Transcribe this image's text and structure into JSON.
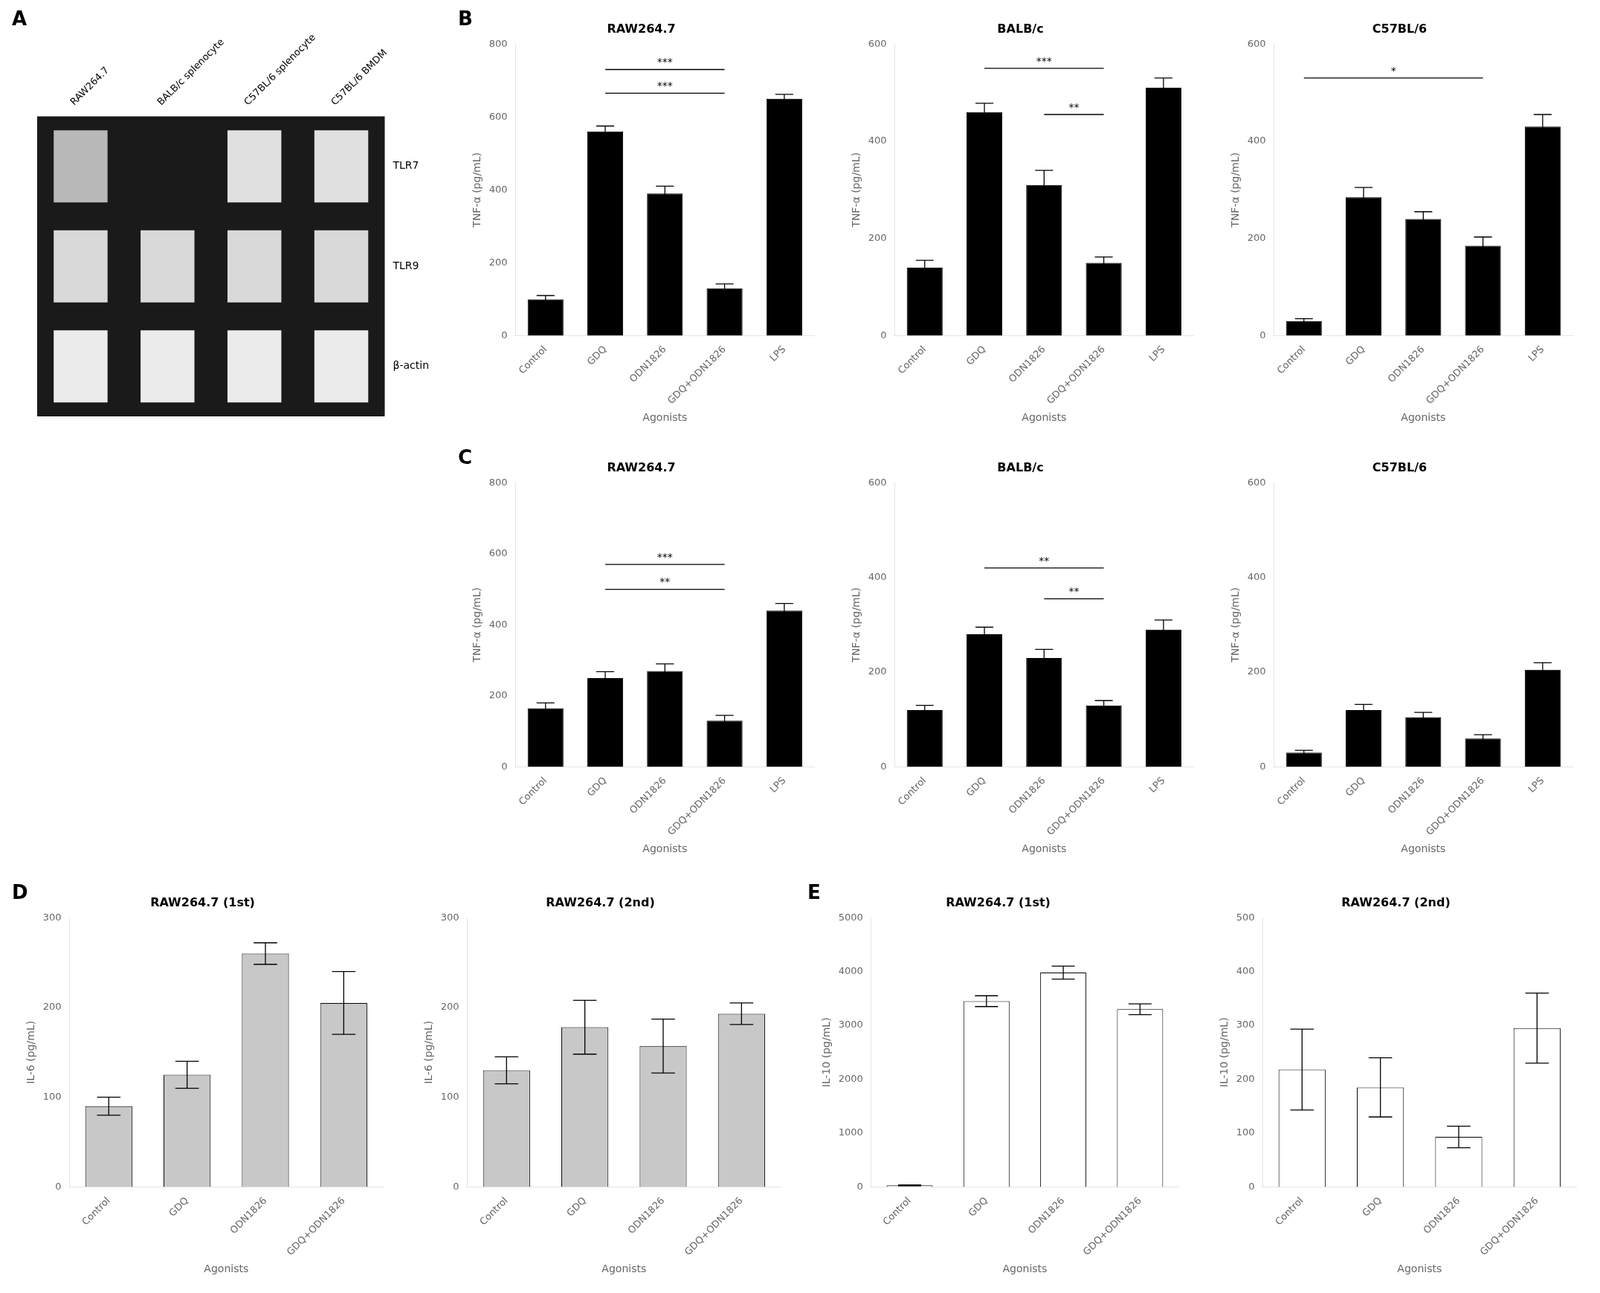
{
  "chart_data": [
    {
      "type": "gel",
      "annotations": [
        {
          "text": "A"
        }
      ],
      "categories": [
        "RAW264.7",
        "BALB/c splenocyte",
        "C57BL/6 splenocyte",
        "C57BL/6 BMDM"
      ],
      "series": [
        {
          "name": "TLR7",
          "values": [
            0.72,
            null,
            0.88,
            0.88
          ]
        },
        {
          "name": "TLR9",
          "values": [
            0.85,
            0.85,
            0.85,
            0.85
          ]
        },
        {
          "name": "β-actin",
          "values": [
            0.92,
            0.92,
            0.92,
            0.92
          ]
        }
      ]
    },
    {
      "type": "bar",
      "title": "RAW264.7",
      "x_label": "Agonists",
      "y_label": "TNF-α (pg/mL)",
      "categories": [
        "Control",
        "GDQ",
        "ODN1826",
        "GDQ+ODN1826",
        "LPS"
      ],
      "values": [
        100,
        560,
        390,
        130,
        650
      ],
      "errors": [
        10,
        15,
        20,
        12,
        12
      ],
      "color": "#000000",
      "ylim": [
        0,
        800
      ],
      "yticks": [
        0,
        200,
        400,
        600,
        800
      ],
      "grid": false,
      "annotations": [
        {
          "text": "B"
        },
        {
          "text": "***",
          "x": [
            "GDQ",
            "GDQ+ODN1826"
          ],
          "y": 730
        },
        {
          "text": "***",
          "x": [
            "GDQ",
            "GDQ+ODN1826"
          ],
          "y": 665
        }
      ]
    },
    {
      "type": "bar",
      "title": "BALB/c",
      "x_label": "Agonists",
      "y_label": "TNF-α (pg/mL)",
      "categories": [
        "Control",
        "GDQ",
        "ODN1826",
        "GDQ+ODN1826",
        "LPS"
      ],
      "values": [
        140,
        460,
        310,
        150,
        510
      ],
      "errors": [
        15,
        18,
        30,
        12,
        20
      ],
      "color": "#000000",
      "ylim": [
        0,
        600
      ],
      "yticks": [
        0,
        200,
        400,
        600
      ],
      "grid": false,
      "annotations": [
        {
          "text": "***",
          "x": [
            "GDQ",
            "GDQ+ODN1826"
          ],
          "y": 550
        },
        {
          "text": "**",
          "x": [
            "ODN1826",
            "GDQ+ODN1826"
          ],
          "y": 455
        }
      ]
    },
    {
      "type": "bar",
      "title": "C57BL/6",
      "x_label": "Agonists",
      "y_label": "TNF-α (pg/mL)",
      "categories": [
        "Control",
        "GDQ",
        "ODN1826",
        "GDQ+ODN1826",
        "LPS"
      ],
      "values": [
        30,
        285,
        240,
        185,
        430
      ],
      "errors": [
        5,
        20,
        15,
        18,
        25
      ],
      "color": "#000000",
      "ylim": [
        0,
        600
      ],
      "yticks": [
        0,
        200,
        400,
        600
      ],
      "grid": false,
      "annotations": [
        {
          "text": "*",
          "x": [
            "Control",
            "GDQ+ODN1826"
          ],
          "y": 530
        }
      ]
    },
    {
      "type": "bar",
      "title": "RAW264.7",
      "x_label": "Agonists",
      "y_label": "TNF-α (pg/mL)",
      "categories": [
        "Control",
        "GDQ",
        "ODN1826",
        "GDQ+ODN1826",
        "LPS"
      ],
      "values": [
        165,
        250,
        270,
        130,
        440
      ],
      "errors": [
        15,
        18,
        20,
        15,
        20
      ],
      "color": "#000000",
      "ylim": [
        0,
        800
      ],
      "yticks": [
        0,
        200,
        400,
        600,
        800
      ],
      "grid": false,
      "annotations": [
        {
          "text": "C"
        },
        {
          "text": "***",
          "x": [
            "GDQ",
            "GDQ+ODN1826"
          ],
          "y": 570
        },
        {
          "text": "**",
          "x": [
            "GDQ",
            "GDQ+ODN1826"
          ],
          "y": 500
        }
      ]
    },
    {
      "type": "bar",
      "title": "BALB/c",
      "x_label": "Agonists",
      "y_label": "TNF-α (pg/mL)",
      "categories": [
        "Control",
        "GDQ",
        "ODN1826",
        "GDQ+ODN1826",
        "LPS"
      ],
      "values": [
        120,
        280,
        230,
        130,
        290
      ],
      "errors": [
        10,
        15,
        18,
        10,
        20
      ],
      "color": "#000000",
      "ylim": [
        0,
        600
      ],
      "yticks": [
        0,
        200,
        400,
        600
      ],
      "grid": false,
      "annotations": [
        {
          "text": "**",
          "x": [
            "GDQ",
            "GDQ+ODN1826"
          ],
          "y": 420
        },
        {
          "text": "**",
          "x": [
            "ODN1826",
            "GDQ+ODN1826"
          ],
          "y": 355
        }
      ]
    },
    {
      "type": "bar",
      "title": "C57BL/6",
      "x_label": "Agonists",
      "y_label": "TNF-α (pg/mL)",
      "categories": [
        "Control",
        "GDQ",
        "ODN1826",
        "GDQ+ODN1826",
        "LPS"
      ],
      "values": [
        30,
        120,
        105,
        60,
        205
      ],
      "errors": [
        5,
        12,
        10,
        8,
        15
      ],
      "color": "#000000",
      "ylim": [
        0,
        600
      ],
      "yticks": [
        0,
        200,
        400,
        600
      ],
      "grid": false
    },
    {
      "type": "bar",
      "title": "RAW264.7 (1st)",
      "x_label": "Agonists",
      "y_label": "IL-6 (pg/mL)",
      "categories": [
        "Control",
        "GDQ",
        "ODN1826",
        "GDQ+ODN1826"
      ],
      "values": [
        90,
        125,
        260,
        205
      ],
      "errors": [
        10,
        15,
        12,
        35
      ],
      "color": "#c8c8c8",
      "ylim": [
        0,
        300
      ],
      "yticks": [
        0,
        100,
        200,
        300
      ],
      "grid": false,
      "annotations": [
        {
          "text": "D"
        }
      ]
    },
    {
      "type": "bar",
      "title": "RAW264.7 (2nd)",
      "x_label": "Agonists",
      "y_label": "IL-6 (pg/mL)",
      "categories": [
        "Control",
        "GDQ",
        "ODN1826",
        "GDQ+ODN1826"
      ],
      "values": [
        130,
        178,
        157,
        193
      ],
      "errors": [
        15,
        30,
        30,
        12
      ],
      "color": "#c8c8c8",
      "ylim": [
        0,
        300
      ],
      "yticks": [
        0,
        100,
        200,
        300
      ],
      "grid": false
    },
    {
      "type": "bar",
      "title": "RAW264.7 (1st)",
      "x_label": "Agonists",
      "y_label": "IL-10 (pg/mL)",
      "categories": [
        "Control",
        "GDQ",
        "ODN1826",
        "GDQ+ODN1826"
      ],
      "values": [
        30,
        3450,
        3980,
        3300
      ],
      "errors": [
        8,
        100,
        120,
        100
      ],
      "color": "#ffffff",
      "ylim": [
        0,
        5000
      ],
      "yticks": [
        0,
        1000,
        2000,
        3000,
        4000,
        5000
      ],
      "grid": false,
      "annotations": [
        {
          "text": "E"
        }
      ]
    },
    {
      "type": "bar",
      "title": "RAW264.7 (2nd)",
      "x_label": "Agonists",
      "y_label": "IL-10 (pg/mL)",
      "categories": [
        "Control",
        "GDQ",
        "ODN1826",
        "GDQ+ODN1826"
      ],
      "values": [
        218,
        185,
        93,
        295
      ],
      "errors": [
        75,
        55,
        20,
        65
      ],
      "color": "#ffffff",
      "ylim": [
        0,
        500
      ],
      "yticks": [
        0,
        100,
        200,
        300,
        400,
        500
      ],
      "grid": false
    }
  ]
}
